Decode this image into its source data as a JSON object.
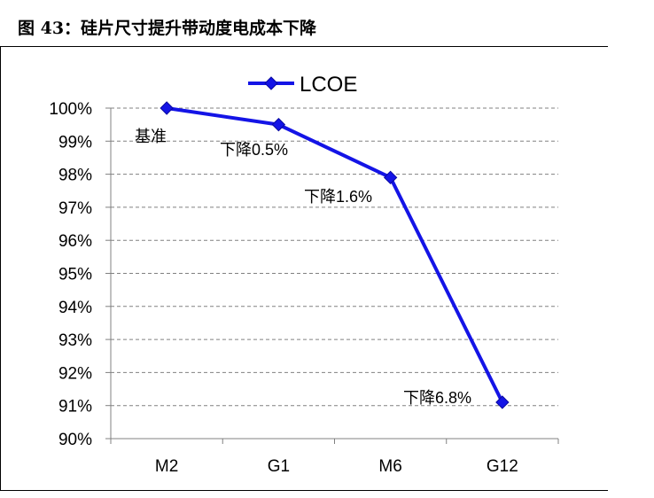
{
  "figure": {
    "title": "图 43：硅片尺寸提升带动度电成本下降"
  },
  "chart_data": {
    "type": "line",
    "title": "",
    "xlabel": "",
    "ylabel": "",
    "categories": [
      "M2",
      "G1",
      "M6",
      "G12"
    ],
    "series": [
      {
        "name": "LCOE",
        "values": [
          100,
          99.5,
          97.9,
          91.1
        ],
        "color": "#1414e6"
      }
    ],
    "ylim": [
      90,
      100
    ],
    "y_ticks": [
      "90%",
      "91%",
      "92%",
      "93%",
      "94%",
      "95%",
      "96%",
      "97%",
      "98%",
      "99%",
      "100%"
    ],
    "grid": "horizontal-dashed",
    "legend": "top-center",
    "annotations": [
      "基准",
      "下降0.5%",
      "下降1.6%",
      "下降6.8%"
    ]
  }
}
